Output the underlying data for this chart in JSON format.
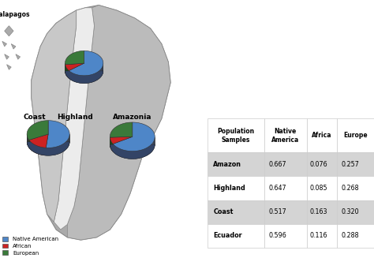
{
  "pie_colors": [
    "#4e86c8",
    "#cc2222",
    "#3a7a3a"
  ],
  "pie_edge_color": "#1a3a6b",
  "pie_3d_colors": [
    "#2a5090",
    "#881111",
    "#1a4a1a"
  ],
  "legend_labels": [
    "Native American",
    "African",
    "European"
  ],
  "regions": {
    "Highland": {
      "values": [
        0.647,
        0.085,
        0.268
      ]
    },
    "Coast": {
      "values": [
        0.517,
        0.163,
        0.32
      ]
    },
    "Amazonia": {
      "values": [
        0.667,
        0.076,
        0.257
      ]
    }
  },
  "table_rows": [
    [
      "Amazon",
      "0.667",
      "0.076",
      "0.257"
    ],
    [
      "Highland",
      "0.647",
      "0.085",
      "0.268"
    ],
    [
      "Coast",
      "0.517",
      "0.163",
      "0.320"
    ],
    [
      "Ecuador",
      "0.596",
      "0.116",
      "0.288"
    ]
  ],
  "shaded_rows": [
    0,
    2
  ],
  "galapagos_label": "Galapagos",
  "bg_color": "#ffffff",
  "map_outer": "#aaaaaa",
  "map_coast": "#c8c8c8",
  "map_highland": "#ececec",
  "map_amazon": "#bbbbbb",
  "map_border": "#888888"
}
